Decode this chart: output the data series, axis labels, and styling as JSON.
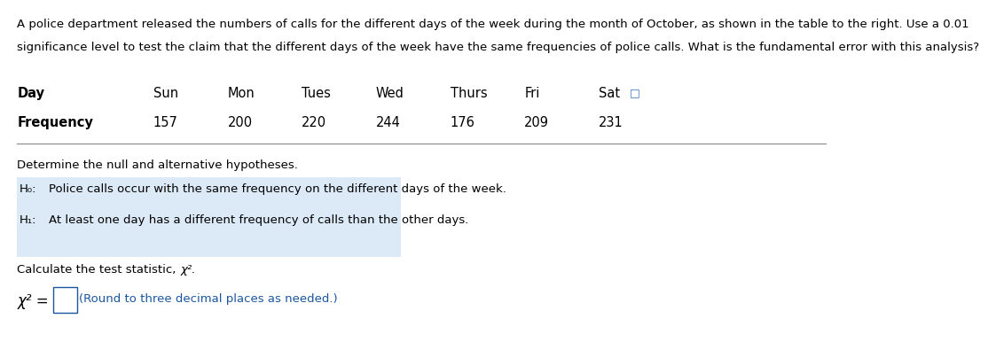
{
  "intro_line1": "A police department released the numbers of calls for the different days of the week during the month of October, as shown in the table to the right. Use a 0.01",
  "intro_line2": "significance level to test the claim that the different days of the week have the same frequencies of police calls. What is the fundamental error with this analysis?",
  "table_header": [
    "Day",
    "Sun",
    "Mon",
    "Tues",
    "Wed",
    "Thurs",
    "Fri",
    "Sat"
  ],
  "table_row_label": "Frequency",
  "table_values": [
    157,
    200,
    220,
    244,
    176,
    209,
    231
  ],
  "section1_text": "Determine the null and alternative hypotheses.",
  "h0_label": "H₀:",
  "h0_text": "Police calls occur with the same frequency on the different days of the week.",
  "h1_label": "H₁:",
  "h1_text": "At least one day has a different frequency of calls than the other days.",
  "section2_label": "Calculate the test statistic, ",
  "section2_chi": "χ².",
  "chi_eq": "χ² =",
  "input_hint": "(Round to three decimal places as needed.)",
  "background_color": "#ffffff",
  "highlight_color": "#dce9f7",
  "text_color": "#000000",
  "blue_text_color": "#1a56a0",
  "line_color": "#888888",
  "icon_color": "#4472c4"
}
